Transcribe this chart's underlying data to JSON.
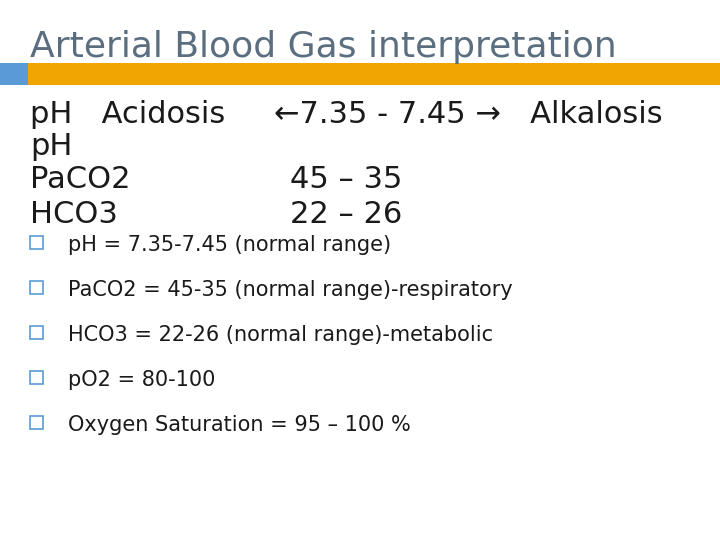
{
  "title": "Arterial Blood Gas interpretation",
  "title_color": "#5a6e80",
  "title_fontsize": 26,
  "bg_color": "#ffffff",
  "bar_left_color": "#5b9bd5",
  "bar_right_color": "#f0a500",
  "line1": "pH   Acidosis     ←7.35 - 7.45 →   Alkalosis",
  "line2": "pH",
  "line3_left": "PaCO2",
  "line3_right": "45 – 35",
  "line4_left": "HCO3",
  "line4_right": "22 – 26",
  "body_fontsize": 22,
  "body_color": "#1a1a1a",
  "bullet_color": "#5b9bd5",
  "bullets": [
    "pH = 7.35-7.45 (normal range)",
    "PaCO2 = 45-35 (normal range)-respiratory",
    "HCO3 = 22-26 (normal range)-metabolic",
    "pO2 = 80-100",
    "Oxygen Saturation = 95 – 100 %"
  ],
  "bullet_fontsize": 15
}
